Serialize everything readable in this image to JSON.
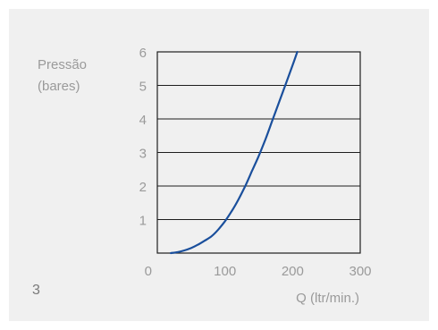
{
  "figure_number": "3",
  "chart_data": {
    "type": "line",
    "title": "",
    "ylabel_lines": [
      "Pressão",
      "(bares)"
    ],
    "xlabel": "Q (ltr/min.)",
    "xlim": [
      0,
      300
    ],
    "ylim": [
      0,
      6
    ],
    "xticks": [
      0,
      100,
      200,
      300
    ],
    "yticks": [
      1,
      2,
      3,
      4,
      5,
      6
    ],
    "grid": "horizontal",
    "line_color": "#1a4f9c",
    "series": [
      {
        "x": [
          20,
          30,
          40,
          50,
          60,
          70,
          80,
          90,
          100,
          110,
          120,
          130,
          140,
          150,
          160,
          170,
          180,
          190,
          200,
          207
        ],
        "y": [
          0.0,
          0.03,
          0.08,
          0.15,
          0.25,
          0.37,
          0.5,
          0.7,
          0.95,
          1.25,
          1.6,
          2.0,
          2.45,
          2.9,
          3.4,
          3.95,
          4.5,
          5.05,
          5.6,
          6.0
        ]
      }
    ]
  }
}
